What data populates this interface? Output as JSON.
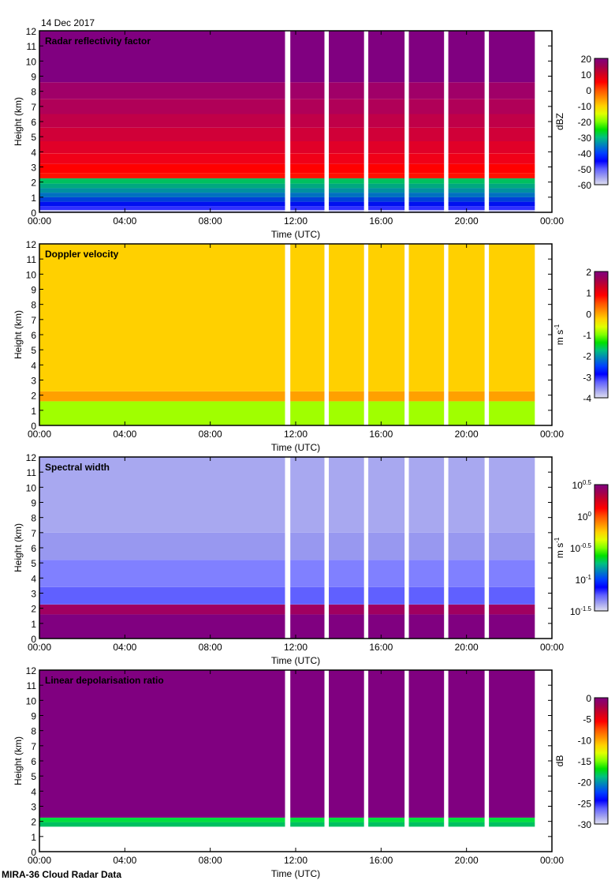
{
  "date_label": "14 Dec 2017",
  "footer_label": "MIRA-36 Cloud Radar Data",
  "chart_data": [
    {
      "type": "heatmap",
      "title": "Radar reflectivity factor",
      "xlabel": "Time (UTC)",
      "ylabel": "Height (km)",
      "xticks": [
        "00:00",
        "04:00",
        "08:00",
        "12:00",
        "16:00",
        "20:00",
        "00:00"
      ],
      "xlim_hours": [
        0,
        24
      ],
      "ylim": [
        0,
        12
      ],
      "yticks": [
        "0",
        "1",
        "2",
        "3",
        "4",
        "5",
        "6",
        "7",
        "8",
        "9",
        "10",
        "11",
        "12"
      ],
      "data_segments_hours": [
        [
          0,
          11.5
        ],
        [
          11.75,
          13.35
        ],
        [
          13.55,
          15.2
        ],
        [
          15.4,
          17.1
        ],
        [
          17.3,
          18.95
        ],
        [
          19.15,
          20.85
        ],
        [
          21.05,
          23.2
        ]
      ],
      "layers": [
        {
          "from": 0,
          "to": 0.15,
          "color": "#c8c8f0"
        },
        {
          "from": 0.15,
          "to": 0.4,
          "color": "#3030ff"
        },
        {
          "from": 0.4,
          "to": 0.7,
          "color": "#0010f0"
        },
        {
          "from": 0.7,
          "to": 1.0,
          "color": "#0040d8"
        },
        {
          "from": 1.0,
          "to": 1.3,
          "color": "#0070c0"
        },
        {
          "from": 1.3,
          "to": 1.6,
          "color": "#0090a0"
        },
        {
          "from": 1.6,
          "to": 1.9,
          "color": "#00a880"
        },
        {
          "from": 1.9,
          "to": 2.25,
          "color": "#00c060"
        },
        {
          "from": 2.25,
          "to": 2.6,
          "color": "#ff1000"
        },
        {
          "from": 2.6,
          "to": 3.2,
          "color": "#ff0000"
        },
        {
          "from": 3.2,
          "to": 3.9,
          "color": "#f00018"
        },
        {
          "from": 3.9,
          "to": 4.7,
          "color": "#e00028"
        },
        {
          "from": 4.7,
          "to": 5.6,
          "color": "#d00038"
        },
        {
          "from": 5.6,
          "to": 6.5,
          "color": "#c00048"
        },
        {
          "from": 6.5,
          "to": 7.5,
          "color": "#b00058"
        },
        {
          "from": 7.5,
          "to": 8.6,
          "color": "#a00068"
        },
        {
          "from": 8.6,
          "to": 12,
          "color": "#800080"
        }
      ],
      "colorbar": {
        "label": "dBZ",
        "ticks": [
          "20",
          "10",
          "0",
          "-10",
          "-20",
          "-30",
          "-40",
          "-50",
          "-60"
        ],
        "range": [
          -60,
          20
        ]
      }
    },
    {
      "type": "heatmap",
      "title": "Doppler velocity",
      "xlabel": "Time (UTC)",
      "ylabel": "Height (km)",
      "xticks": [
        "00:00",
        "04:00",
        "08:00",
        "12:00",
        "16:00",
        "20:00",
        "00:00"
      ],
      "xlim_hours": [
        0,
        24
      ],
      "ylim": [
        0,
        12
      ],
      "yticks": [
        "0",
        "1",
        "2",
        "3",
        "4",
        "5",
        "6",
        "7",
        "8",
        "9",
        "10",
        "11",
        "12"
      ],
      "data_segments_hours": [
        [
          0,
          11.5
        ],
        [
          11.75,
          13.35
        ],
        [
          13.55,
          15.2
        ],
        [
          15.4,
          17.1
        ],
        [
          17.3,
          18.95
        ],
        [
          19.15,
          20.85
        ],
        [
          21.05,
          23.2
        ]
      ],
      "layers": [
        {
          "from": 0,
          "to": 1.6,
          "color": "#a0ff00"
        },
        {
          "from": 1.6,
          "to": 2.25,
          "color": "#ffa000"
        },
        {
          "from": 2.25,
          "to": 12,
          "color": "#ffd000"
        }
      ],
      "colorbar": {
        "label": "m s",
        "label_sup": "-1",
        "ticks": [
          "2",
          "1",
          "0",
          "-1",
          "-2",
          "-3",
          "-4"
        ],
        "range": [
          -4,
          2
        ]
      }
    },
    {
      "type": "heatmap",
      "title": "Spectral width",
      "xlabel": "Time (UTC)",
      "ylabel": "Height (km)",
      "xticks": [
        "00:00",
        "04:00",
        "08:00",
        "12:00",
        "16:00",
        "20:00",
        "00:00"
      ],
      "xlim_hours": [
        0,
        24
      ],
      "ylim": [
        0,
        12
      ],
      "yticks": [
        "0",
        "1",
        "2",
        "3",
        "4",
        "5",
        "6",
        "7",
        "8",
        "9",
        "10",
        "11",
        "12"
      ],
      "data_segments_hours": [
        [
          0,
          11.5
        ],
        [
          11.75,
          13.35
        ],
        [
          13.55,
          15.2
        ],
        [
          15.4,
          17.1
        ],
        [
          17.3,
          18.95
        ],
        [
          19.15,
          20.85
        ],
        [
          21.05,
          23.2
        ]
      ],
      "layers": [
        {
          "from": 0,
          "to": 1.6,
          "color": "#800080"
        },
        {
          "from": 1.6,
          "to": 2.25,
          "color": "#a00060"
        },
        {
          "from": 2.25,
          "to": 3.4,
          "color": "#6060ff"
        },
        {
          "from": 3.4,
          "to": 5.2,
          "color": "#8080ff"
        },
        {
          "from": 5.2,
          "to": 7.0,
          "color": "#9898f0"
        },
        {
          "from": 7.0,
          "to": 12,
          "color": "#a8a8f0"
        }
      ],
      "colorbar": {
        "label": "m s",
        "label_sup": "-1",
        "ticks": [
          {
            "base": "10",
            "exp": "0.5"
          },
          {
            "base": "10",
            "exp": "0"
          },
          {
            "base": "10",
            "exp": "-0.5"
          },
          {
            "base": "10",
            "exp": "-1"
          },
          {
            "base": "10",
            "exp": "-1.5"
          }
        ],
        "range": [
          -1.5,
          0.5
        ]
      }
    },
    {
      "type": "heatmap",
      "title": "Linear depolarisation ratio",
      "xlabel": "Time (UTC)",
      "ylabel": "Height (km)",
      "xticks": [
        "00:00",
        "04:00",
        "08:00",
        "12:00",
        "16:00",
        "20:00",
        "00:00"
      ],
      "xlim_hours": [
        0,
        24
      ],
      "ylim": [
        0,
        12
      ],
      "yticks": [
        "0",
        "1",
        "2",
        "3",
        "4",
        "5",
        "6",
        "7",
        "8",
        "9",
        "10",
        "11",
        "12"
      ],
      "data_segments_hours": [
        [
          0,
          11.5
        ],
        [
          11.75,
          13.35
        ],
        [
          13.55,
          15.2
        ],
        [
          15.4,
          17.1
        ],
        [
          17.3,
          18.95
        ],
        [
          19.15,
          20.85
        ],
        [
          21.05,
          23.2
        ]
      ],
      "layers": [
        {
          "from": 1.65,
          "to": 1.95,
          "color": "#00c060"
        },
        {
          "from": 1.95,
          "to": 2.25,
          "color": "#00e040"
        },
        {
          "from": 2.25,
          "to": 12,
          "color": "#800080"
        }
      ],
      "colorbar": {
        "label": "dB",
        "ticks": [
          "0",
          "-5",
          "-10",
          "-15",
          "-20",
          "-25",
          "-30"
        ],
        "range": [
          -30,
          0
        ]
      }
    }
  ],
  "colormap": [
    "#800080",
    "#a00050",
    "#d00020",
    "#ff0000",
    "#ff5000",
    "#ff9000",
    "#ffd000",
    "#e0ff00",
    "#80ff00",
    "#00e000",
    "#00c080",
    "#0080c0",
    "#0040ff",
    "#0000ff",
    "#6060ff",
    "#a0a0f0",
    "#e0e0f0"
  ]
}
